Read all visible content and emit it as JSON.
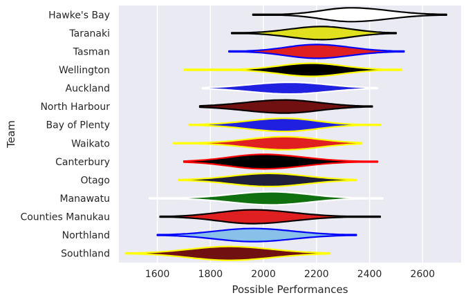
{
  "chart_data": {
    "type": "violin",
    "title": "",
    "xlabel": "Possible Performances",
    "ylabel": "Team",
    "xlim": [
      1455,
      2745
    ],
    "xticks": [
      1600,
      1800,
      2000,
      2200,
      2400,
      2600
    ],
    "grid": true,
    "background": "#eaeaf2",
    "series": [
      {
        "name": "Hawke's Bay",
        "fill": "#ffffff",
        "edge": "#000000",
        "min": 1960,
        "max": 2690,
        "mode": 2330,
        "widthLeft": 110,
        "widthRight": 140,
        "maxHalf": 10
      },
      {
        "name": "Taranaki",
        "fill": "#e0e01e",
        "edge": "#000000",
        "min": 1880,
        "max": 2500,
        "mode": 2220,
        "widthLeft": 120,
        "widthRight": 110,
        "maxHalf": 9.5
      },
      {
        "name": "Tasman",
        "fill": "#e02020",
        "edge": "#0000ff",
        "min": 1870,
        "max": 2530,
        "mode": 2200,
        "widthLeft": 115,
        "widthRight": 125,
        "maxHalf": 10
      },
      {
        "name": "Wellington",
        "fill": "#000000",
        "edge": "#ffff00",
        "min": 1700,
        "max": 2520,
        "mode": 2180,
        "widthLeft": 120,
        "widthRight": 120,
        "maxHalf": 9.5
      },
      {
        "name": "Auckland",
        "fill": "#2020e0",
        "edge": "#ffffff",
        "min": 1770,
        "max": 2430,
        "mode": 2100,
        "widthLeft": 150,
        "widthRight": 140,
        "maxHalf": 8.5
      },
      {
        "name": "North Harbour",
        "fill": "#701010",
        "edge": "#000000",
        "min": 1760,
        "max": 2410,
        "mode": 2080,
        "widthLeft": 150,
        "widthRight": 130,
        "maxHalf": 9.5
      },
      {
        "name": "Bay of Plenty",
        "fill": "#2020e0",
        "edge": "#ffff00",
        "min": 1720,
        "max": 2440,
        "mode": 2080,
        "widthLeft": 140,
        "widthRight": 120,
        "maxHalf": 9.5
      },
      {
        "name": "Waikato",
        "fill": "#e02020",
        "edge": "#ffff00",
        "min": 1660,
        "max": 2370,
        "mode": 2080,
        "widthLeft": 140,
        "widthRight": 130,
        "maxHalf": 9.5
      },
      {
        "name": "Canterbury",
        "fill": "#000000",
        "edge": "#ff0000",
        "min": 1700,
        "max": 2430,
        "mode": 2000,
        "widthLeft": 130,
        "widthRight": 150,
        "maxHalf": 10.5
      },
      {
        "name": "Otago",
        "fill": "#20203a",
        "edge": "#ffff00",
        "min": 1680,
        "max": 2350,
        "mode": 2020,
        "widthLeft": 140,
        "widthRight": 140,
        "maxHalf": 9.5
      },
      {
        "name": "Manawatu",
        "fill": "#107010",
        "edge": "#ffffff",
        "min": 1570,
        "max": 2450,
        "mode": 2030,
        "widthLeft": 150,
        "widthRight": 140,
        "maxHalf": 9.5
      },
      {
        "name": "Counties Manukau",
        "fill": "#e02020",
        "edge": "#000000",
        "min": 1610,
        "max": 2440,
        "mode": 1960,
        "widthLeft": 130,
        "widthRight": 150,
        "maxHalf": 10
      },
      {
        "name": "Northland",
        "fill": "#87c0e8",
        "edge": "#0000ff",
        "min": 1600,
        "max": 2350,
        "mode": 1960,
        "widthLeft": 140,
        "widthRight": 150,
        "maxHalf": 9.5
      },
      {
        "name": "Southland",
        "fill": "#701010",
        "edge": "#ffff00",
        "min": 1480,
        "max": 2250,
        "mode": 1870,
        "widthLeft": 150,
        "widthRight": 160,
        "maxHalf": 10
      }
    ]
  }
}
